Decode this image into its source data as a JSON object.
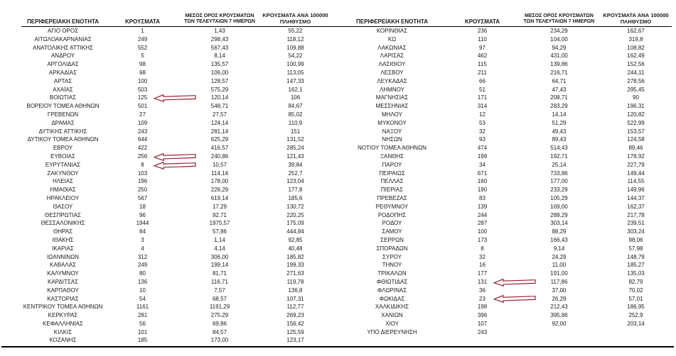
{
  "headers": {
    "region": "ΠΕΡΙΦΕΡΕΙΑΚΗ ΕΝΟΤΗΤΑ",
    "cases": "ΚΡΟΥΣΜΑΤΑ",
    "avg7_line1": "ΜΕΣΟΣ ΟΡΟΣ ΚΡΟΥΣΜΑΤΩΝ",
    "avg7_line2": "ΤΩΝ ΤΕΛΕΥΤΑΙΩΝ 7 ΗΜΕΡΩΝ",
    "per100k_line1": "ΚΡΟΥΣΜΑΤΑ ΑΝΑ 100000",
    "per100k_line2": "ΠΛΗΘΥΣΜΟ"
  },
  "colors": {
    "arrow": "#8e2433",
    "text": "#1a1a1a",
    "rule": "#000000"
  },
  "left_table": {
    "rows": [
      {
        "region": "ΑΓΙΟ ΟΡΟΣ",
        "cases": "1",
        "avg7": "1,43",
        "per100k": "55,22",
        "arrow": false
      },
      {
        "region": "ΑΙΤΩΛΟΑΚΑΡΝΑΝΙΑΣ",
        "cases": "249",
        "avg7": "298,43",
        "per100k": "118,12",
        "arrow": false
      },
      {
        "region": "ΑΝΑΤΟΛΙΚΗΣ ΑΤΤΙΚΗΣ",
        "cases": "552",
        "avg7": "567,43",
        "per100k": "109,88",
        "arrow": false
      },
      {
        "region": "ΑΝΔΡΟΥ",
        "cases": "5",
        "avg7": "8,14",
        "per100k": "54,22",
        "arrow": false
      },
      {
        "region": "ΑΡΓΟΛΙΔΑΣ",
        "cases": "98",
        "avg7": "135,57",
        "per100k": "100,99",
        "arrow": false
      },
      {
        "region": "ΑΡΚΑΔΙΑΣ",
        "cases": "98",
        "avg7": "106,00",
        "per100k": "113,05",
        "arrow": false
      },
      {
        "region": "ΑΡΤΑΣ",
        "cases": "100",
        "avg7": "128,57",
        "per100k": "147,33",
        "arrow": false
      },
      {
        "region": "ΑΧΑΪΑΣ",
        "cases": "503",
        "avg7": "575,29",
        "per100k": "162,1",
        "arrow": false
      },
      {
        "region": "ΒΟΙΩΤΙΑΣ",
        "cases": "125",
        "avg7": "120,14",
        "per100k": "106",
        "arrow": true
      },
      {
        "region": "ΒΟΡΕΙΟΥ ΤΟΜΕΑ ΑΘΗΝΩΝ",
        "cases": "501",
        "avg7": "548,71",
        "per100k": "84,67",
        "arrow": false
      },
      {
        "region": "ΓΡΕΒΕΝΩΝ",
        "cases": "27",
        "avg7": "27,57",
        "per100k": "85,02",
        "arrow": false
      },
      {
        "region": "ΔΡΑΜΑΣ",
        "cases": "109",
        "avg7": "124,14",
        "per100k": "110,9",
        "arrow": false
      },
      {
        "region": "ΔΥΤΙΚΗΣ ΑΤΤΙΚΗΣ",
        "cases": "243",
        "avg7": "281,14",
        "per100k": "151",
        "arrow": false
      },
      {
        "region": "ΔΥΤΙΚΟΥ ΤΟΜΕΑ ΑΘΗΝΩΝ",
        "cases": "644",
        "avg7": "625,29",
        "per100k": "131,52",
        "arrow": false
      },
      {
        "region": "ΕΒΡΟΥ",
        "cases": "422",
        "avg7": "416,57",
        "per100k": "285,24",
        "arrow": false
      },
      {
        "region": "ΕΥΒΟΙΑΣ",
        "cases": "256",
        "avg7": "240,86",
        "per100k": "121,43",
        "arrow": true
      },
      {
        "region": "ΕΥΡΥΤΑΝΙΑΣ",
        "cases": "8",
        "avg7": "10,57",
        "per100k": "39,84",
        "arrow": true
      },
      {
        "region": "ΖΑΚΥΝΘΟΥ",
        "cases": "103",
        "avg7": "114,14",
        "per100k": "252,7",
        "arrow": false
      },
      {
        "region": "ΗΛΕΙΑΣ",
        "cases": "196",
        "avg7": "178,00",
        "per100k": "123,04",
        "arrow": false
      },
      {
        "region": "ΗΜΑΘΙΑΣ",
        "cases": "250",
        "avg7": "226,29",
        "per100k": "177,8",
        "arrow": false
      },
      {
        "region": "ΗΡΑΚΛΕΙΟΥ",
        "cases": "567",
        "avg7": "619,14",
        "per100k": "185,6",
        "arrow": false
      },
      {
        "region": "ΘΑΣΟΥ",
        "cases": "18",
        "avg7": "17,29",
        "per100k": "130,72",
        "arrow": false
      },
      {
        "region": "ΘΕΣΠΡΩΤΙΑΣ",
        "cases": "96",
        "avg7": "92,71",
        "per100k": "220,25",
        "arrow": false
      },
      {
        "region": "ΘΕΣΣΑΛΟΝΙΚΗΣ",
        "cases": "1944",
        "avg7": "1975,57",
        "per100k": "175,09",
        "arrow": false
      },
      {
        "region": "ΘΗΡΑΣ",
        "cases": "84",
        "avg7": "57,86",
        "per100k": "444,84",
        "arrow": false
      },
      {
        "region": "ΙΘΑΚΗΣ",
        "cases": "3",
        "avg7": "1,14",
        "per100k": "92,85",
        "arrow": false
      },
      {
        "region": "ΙΚΑΡΙΑΣ",
        "cases": "4",
        "avg7": "4,14",
        "per100k": "40,48",
        "arrow": false
      },
      {
        "region": "ΙΩΑΝΝΙΝΩΝ",
        "cases": "312",
        "avg7": "306,00",
        "per100k": "185,82",
        "arrow": false
      },
      {
        "region": "ΚΑΒΑΛΑΣ",
        "cases": "249",
        "avg7": "199,14",
        "per100k": "199,33",
        "arrow": false
      },
      {
        "region": "ΚΑΛΥΜΝΟΥ",
        "cases": "80",
        "avg7": "81,71",
        "per100k": "271,63",
        "arrow": false
      },
      {
        "region": "ΚΑΡΔΙΤΣΑΣ",
        "cases": "136",
        "avg7": "116,71",
        "per100k": "119,78",
        "arrow": false
      },
      {
        "region": "ΚΑΡΠΑΘΟΥ",
        "cases": "10",
        "avg7": "7,57",
        "per100k": "136,8",
        "arrow": false
      },
      {
        "region": "ΚΑΣΤΟΡΙΑΣ",
        "cases": "54",
        "avg7": "68,57",
        "per100k": "107,31",
        "arrow": false
      },
      {
        "region": "ΚΕΝΤΡΙΚΟΥ ΤΟΜΕΑ ΑΘΗΝΩΝ",
        "cases": "1161",
        "avg7": "1191,29",
        "per100k": "112,77",
        "arrow": false
      },
      {
        "region": "ΚΕΡΚΥΡΑΣ",
        "cases": "281",
        "avg7": "275,29",
        "per100k": "269,23",
        "arrow": false
      },
      {
        "region": "ΚΕΦΑΛΛΗΝΙΑΣ",
        "cases": "56",
        "avg7": "69,86",
        "per100k": "156,42",
        "arrow": false
      },
      {
        "region": "ΚΙΛΚΙΣ",
        "cases": "101",
        "avg7": "84,57",
        "per100k": "125,59",
        "arrow": false
      },
      {
        "region": "ΚΟΖΑΝΗΣ",
        "cases": "185",
        "avg7": "173,00",
        "per100k": "123,17",
        "arrow": false
      }
    ]
  },
  "right_table": {
    "rows": [
      {
        "region": "ΚΟΡΙΝΘΙΑΣ",
        "cases": "236",
        "avg7": "234,29",
        "per100k": "162,67",
        "arrow": false
      },
      {
        "region": "ΚΩ",
        "cases": "110",
        "avg7": "104,00",
        "per100k": "319,8",
        "arrow": false
      },
      {
        "region": "ΛΑΚΩΝΙΑΣ",
        "cases": "97",
        "avg7": "94,29",
        "per100k": "108,82",
        "arrow": false
      },
      {
        "region": "ΛΑΡΙΣΑΣ",
        "cases": "462",
        "avg7": "431,00",
        "per100k": "162,49",
        "arrow": false
      },
      {
        "region": "ΛΑΣΙΘΙΟΥ",
        "cases": "115",
        "avg7": "139,86",
        "per100k": "152,56",
        "arrow": false
      },
      {
        "region": "ΛΕΣΒΟΥ",
        "cases": "211",
        "avg7": "216,71",
        "per100k": "244,11",
        "arrow": false
      },
      {
        "region": "ΛΕΥΚΑΔΑΣ",
        "cases": "66",
        "avg7": "64,71",
        "per100k": "278,56",
        "arrow": false
      },
      {
        "region": "ΛΗΜΝΟΥ",
        "cases": "51",
        "avg7": "47,43",
        "per100k": "295,45",
        "arrow": false
      },
      {
        "region": "ΜΑΓΝΗΣΙΑΣ",
        "cases": "171",
        "avg7": "208,71",
        "per100k": "90",
        "arrow": false
      },
      {
        "region": "ΜΕΣΣΗΝΙΑΣ",
        "cases": "314",
        "avg7": "283,29",
        "per100k": "196,31",
        "arrow": false
      },
      {
        "region": "ΜΗΛΟΥ",
        "cases": "12",
        "avg7": "14,14",
        "per100k": "120,82",
        "arrow": false
      },
      {
        "region": "ΜΥΚΟΝΟΥ",
        "cases": "53",
        "avg7": "51,29",
        "per100k": "522,99",
        "arrow": false
      },
      {
        "region": "ΝΑΞΟΥ",
        "cases": "32",
        "avg7": "49,43",
        "per100k": "153,57",
        "arrow": false
      },
      {
        "region": "ΝΗΣΩΝ",
        "cases": "93",
        "avg7": "89,43",
        "per100k": "124,58",
        "arrow": false
      },
      {
        "region": "ΝΟΤΙΟΥ ΤΟΜΕΑ ΑΘΗΝΩΝ",
        "cases": "474",
        "avg7": "514,43",
        "per100k": "89,46",
        "arrow": false
      },
      {
        "region": "ΞΑΝΘΗΣ",
        "cases": "199",
        "avg7": "192,71",
        "per100k": "178,92",
        "arrow": false
      },
      {
        "region": "ΠΑΡΟΥ",
        "cases": "34",
        "avg7": "25,14",
        "per100k": "227,79",
        "arrow": false
      },
      {
        "region": "ΠΕΙΡΑΙΩΣ",
        "cases": "671",
        "avg7": "733,86",
        "per100k": "149,44",
        "arrow": false
      },
      {
        "region": "ΠΕΛΛΑΣ",
        "cases": "160",
        "avg7": "177,00",
        "per100k": "114,55",
        "arrow": false
      },
      {
        "region": "ΠΙΕΡΙΑΣ",
        "cases": "190",
        "avg7": "233,29",
        "per100k": "149,96",
        "arrow": false
      },
      {
        "region": "ΠΡΕΒΕΖΑΣ",
        "cases": "83",
        "avg7": "105,29",
        "per100k": "144,37",
        "arrow": false
      },
      {
        "region": "ΡΕΘΥΜΝΟΥ",
        "cases": "139",
        "avg7": "169,00",
        "per100k": "162,37",
        "arrow": false
      },
      {
        "region": "ΡΟΔΟΠΗΣ",
        "cases": "244",
        "avg7": "289,29",
        "per100k": "217,78",
        "arrow": false
      },
      {
        "region": "ΡΟΔΟΥ",
        "cases": "287",
        "avg7": "303,14",
        "per100k": "239,51",
        "arrow": false
      },
      {
        "region": "ΣΑΜΟΥ",
        "cases": "100",
        "avg7": "88,29",
        "per100k": "303,24",
        "arrow": false
      },
      {
        "region": "ΣΕΡΡΩΝ",
        "cases": "173",
        "avg7": "166,43",
        "per100k": "98,06",
        "arrow": false
      },
      {
        "region": "ΣΠΟΡΑΔΩΝ",
        "cases": "8",
        "avg7": "9,14",
        "per100k": "57,98",
        "arrow": false
      },
      {
        "region": "ΣΥΡΟΥ",
        "cases": "32",
        "avg7": "24,29",
        "per100k": "148,79",
        "arrow": false
      },
      {
        "region": "ΤΗΝΟΥ",
        "cases": "16",
        "avg7": "11,00",
        "per100k": "185,27",
        "arrow": false
      },
      {
        "region": "ΤΡΙΚΑΛΩΝ",
        "cases": "177",
        "avg7": "191,00",
        "per100k": "135,03",
        "arrow": false
      },
      {
        "region": "ΦΘΙΩΤΙΔΑΣ",
        "cases": "131",
        "avg7": "117,86",
        "per100k": "82,79",
        "arrow": true
      },
      {
        "region": "ΦΛΩΡΙΝΑΣ",
        "cases": "36",
        "avg7": "37,00",
        "per100k": "70,02",
        "arrow": false
      },
      {
        "region": "ΦΩΚΙΔΑΣ",
        "cases": "23",
        "avg7": "26,29",
        "per100k": "57,01",
        "arrow": true
      },
      {
        "region": "ΧΑΛΚΙΔΙΚΗΣ",
        "cases": "198",
        "avg7": "212,43",
        "per100k": "186,95",
        "arrow": false
      },
      {
        "region": "ΧΑΝΙΩΝ",
        "cases": "396",
        "avg7": "395,86",
        "per100k": "252,9",
        "arrow": false
      },
      {
        "region": "ΧΙΟΥ",
        "cases": "107",
        "avg7": "92,00",
        "per100k": "203,14",
        "arrow": false
      },
      {
        "region": "ΥΠΟ ΔΙΕΡΕΥΝΗΣΗ",
        "cases": "243",
        "avg7": "",
        "per100k": "",
        "arrow": false
      }
    ]
  }
}
